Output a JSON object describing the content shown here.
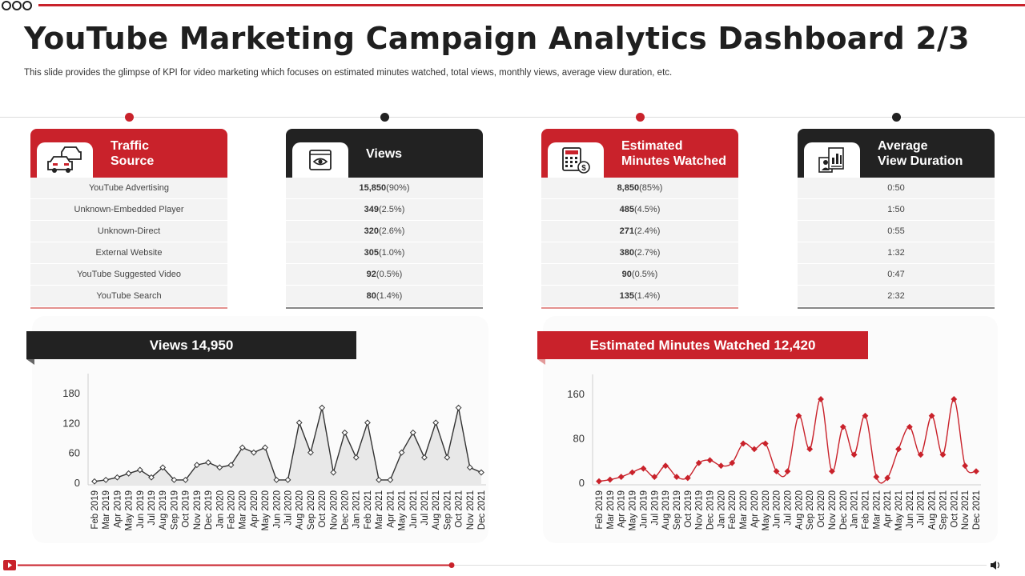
{
  "header": {
    "title": "YouTube Marketing Campaign Analytics Dashboard 2/3",
    "subtitle": "This slide provides the glimpse of KPI for video marketing which focuses on estimated minutes watched, total views, monthly views, average view duration, etc."
  },
  "colors": {
    "accent": "#c9222b",
    "dark": "#222222",
    "row_bg": "#f3f3f3"
  },
  "cards": [
    {
      "title_lines": [
        "Traffic",
        "Source"
      ],
      "icon": "cars-icon",
      "rows": [
        "YouTube Advertising",
        "Unknown-Embedded Player",
        "Unknown-Direct",
        "External Website",
        "YouTube Suggested Video",
        "YouTube Search"
      ]
    },
    {
      "title_lines": [
        "Views"
      ],
      "icon": "video-player-icon",
      "rows": [
        {
          "value": "15,850",
          "pct": "(90%)"
        },
        {
          "value": "349",
          "pct": "(2.5%)"
        },
        {
          "value": "320",
          "pct": "(2.6%)"
        },
        {
          "value": "305",
          "pct": "(1.0%)"
        },
        {
          "value": "92",
          "pct": "(0.5%)"
        },
        {
          "value": "80",
          "pct": "(1.4%)"
        }
      ]
    },
    {
      "title_lines": [
        "Estimated",
        "Minutes Watched"
      ],
      "icon": "calculator-dollar-icon",
      "rows": [
        {
          "value": "8,850",
          "pct": "(85%)"
        },
        {
          "value": "485",
          "pct": "(4.5%)"
        },
        {
          "value": "271",
          "pct": "(2.4%)"
        },
        {
          "value": "380",
          "pct": "(2.7%)"
        },
        {
          "value": "90",
          "pct": "(0.5%)"
        },
        {
          "value": "135",
          "pct": "(1.4%)"
        }
      ]
    },
    {
      "title_lines": [
        "Average",
        "View Duration"
      ],
      "icon": "profile-chart-icon",
      "rows": [
        "0:50",
        "1:50",
        "0:55",
        "1:32",
        "0:47",
        "2:32"
      ]
    }
  ],
  "chart_data": [
    {
      "type": "area",
      "title": "Views 14,950",
      "xlabel": "",
      "ylabel": "",
      "ylim": [
        0,
        180
      ],
      "yticks": [
        0,
        60,
        120,
        180
      ],
      "grid": false,
      "x": [
        "Feb 2019",
        "Mar 2019",
        "Apr 2019",
        "May 2019",
        "Jun 2019",
        "Jul 2019",
        "Aug 2019",
        "Sep 2019",
        "Oct 2019",
        "Nov 2019",
        "Dec 2019",
        "Jan 2020",
        "Feb 2020",
        "Mar 2020",
        "Apr 2020",
        "May 2020",
        "Jun 2020",
        "Jul 2020",
        "Aug 2020",
        "Sep 2020",
        "Oct 2020",
        "Nov 2020",
        "Dec 2020",
        "Jan 2021",
        "Feb 2021",
        "Mar 2021",
        "Apr 2021",
        "May 2021",
        "Jun 2021",
        "Jul 2021",
        "Aug 2021",
        "Sep 2021",
        "Oct 2021",
        "Nov 2021",
        "Dec 2021"
      ],
      "values": [
        2,
        5,
        10,
        18,
        25,
        10,
        30,
        5,
        5,
        35,
        40,
        30,
        35,
        70,
        60,
        70,
        5,
        5,
        120,
        60,
        150,
        20,
        100,
        50,
        120,
        5,
        5,
        60,
        100,
        50,
        120,
        50,
        150,
        30,
        20
      ]
    },
    {
      "type": "line",
      "title": "Estimated Minutes Watched 12,420",
      "xlabel": "",
      "ylabel": "",
      "ylim": [
        0,
        160
      ],
      "yticks": [
        0,
        80,
        160
      ],
      "grid": false,
      "x": [
        "Feb 2019",
        "Mar 2019",
        "Apr 2019",
        "May 2019",
        "Jun 2019",
        "Jul 2019",
        "Aug 2019",
        "Sep 2019",
        "Oct 2019",
        "Nov 2019",
        "Dec 2019",
        "Jan 2020",
        "Feb 2020",
        "Mar 2020",
        "Apr 2020",
        "May 2020",
        "Jun 2020",
        "Jul 2020",
        "Aug 2020",
        "Sep 2020",
        "Oct 2020",
        "Nov 2020",
        "Dec 2020",
        "Jan 2021",
        "Feb 2021",
        "Mar 2021",
        "Apr 2021",
        "May 2021",
        "Jun 2021",
        "Jul 2021",
        "Aug 2021",
        "Sep 2021",
        "Oct 2021",
        "Nov 2021",
        "Dec 2021"
      ],
      "values": [
        2,
        5,
        10,
        18,
        25,
        10,
        30,
        10,
        8,
        35,
        40,
        30,
        35,
        70,
        60,
        70,
        20,
        20,
        120,
        60,
        150,
        20,
        100,
        50,
        120,
        10,
        8,
        60,
        100,
        50,
        120,
        50,
        150,
        30,
        20
      ]
    }
  ]
}
